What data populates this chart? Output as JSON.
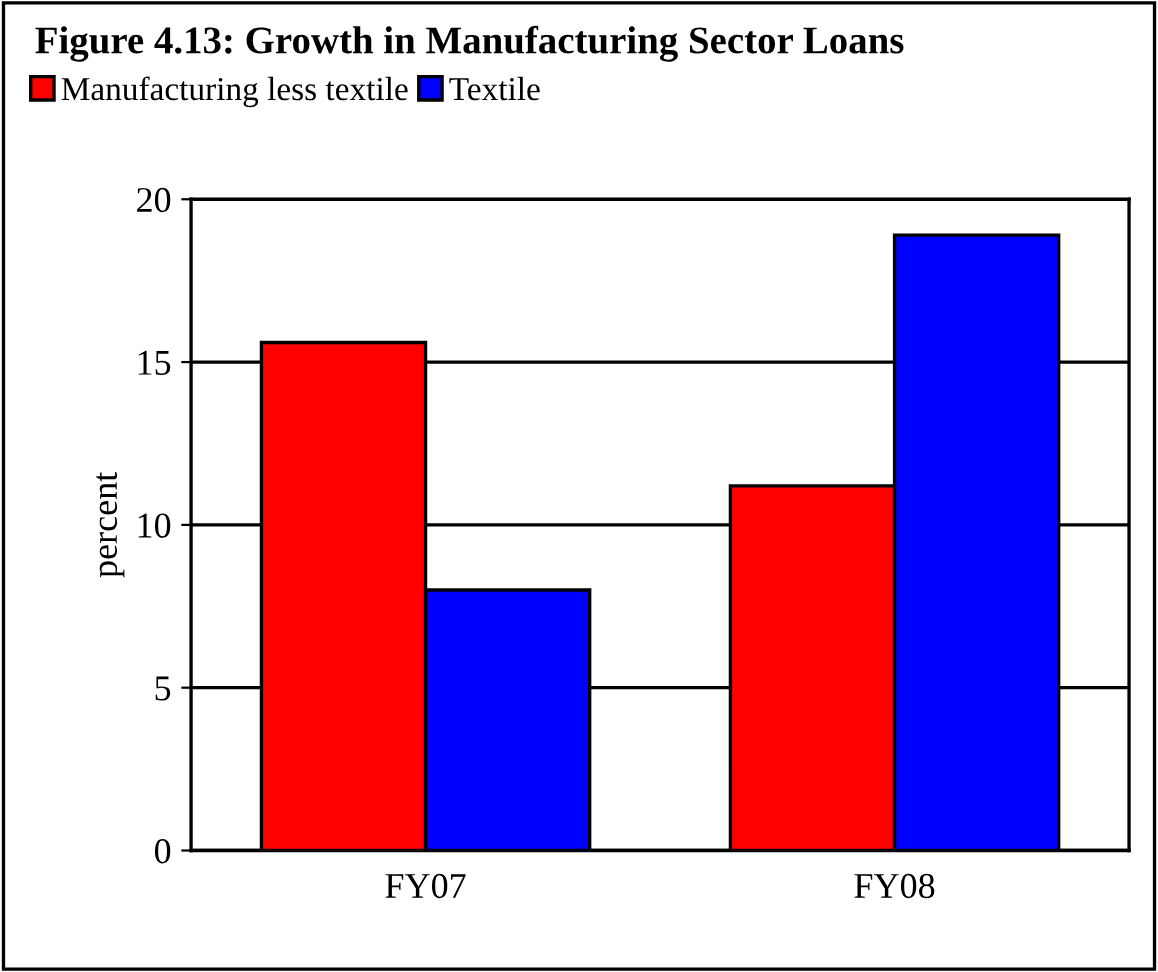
{
  "chart_data": {
    "type": "bar",
    "title": "Figure 4.13: Growth in Manufacturing Sector Loans",
    "ylabel": "percent",
    "categories": [
      "FY07",
      "FY08"
    ],
    "series": [
      {
        "name": "Manufacturing less textile",
        "color": "#ff0000",
        "values": [
          15.6,
          11.2
        ]
      },
      {
        "name": "Textile",
        "color": "#0000ff",
        "values": [
          8.0,
          18.9
        ]
      }
    ],
    "ylim": [
      0,
      20
    ],
    "yticks": [
      0,
      5,
      10,
      15,
      20
    ],
    "grid": "y",
    "legend": "top left"
  }
}
